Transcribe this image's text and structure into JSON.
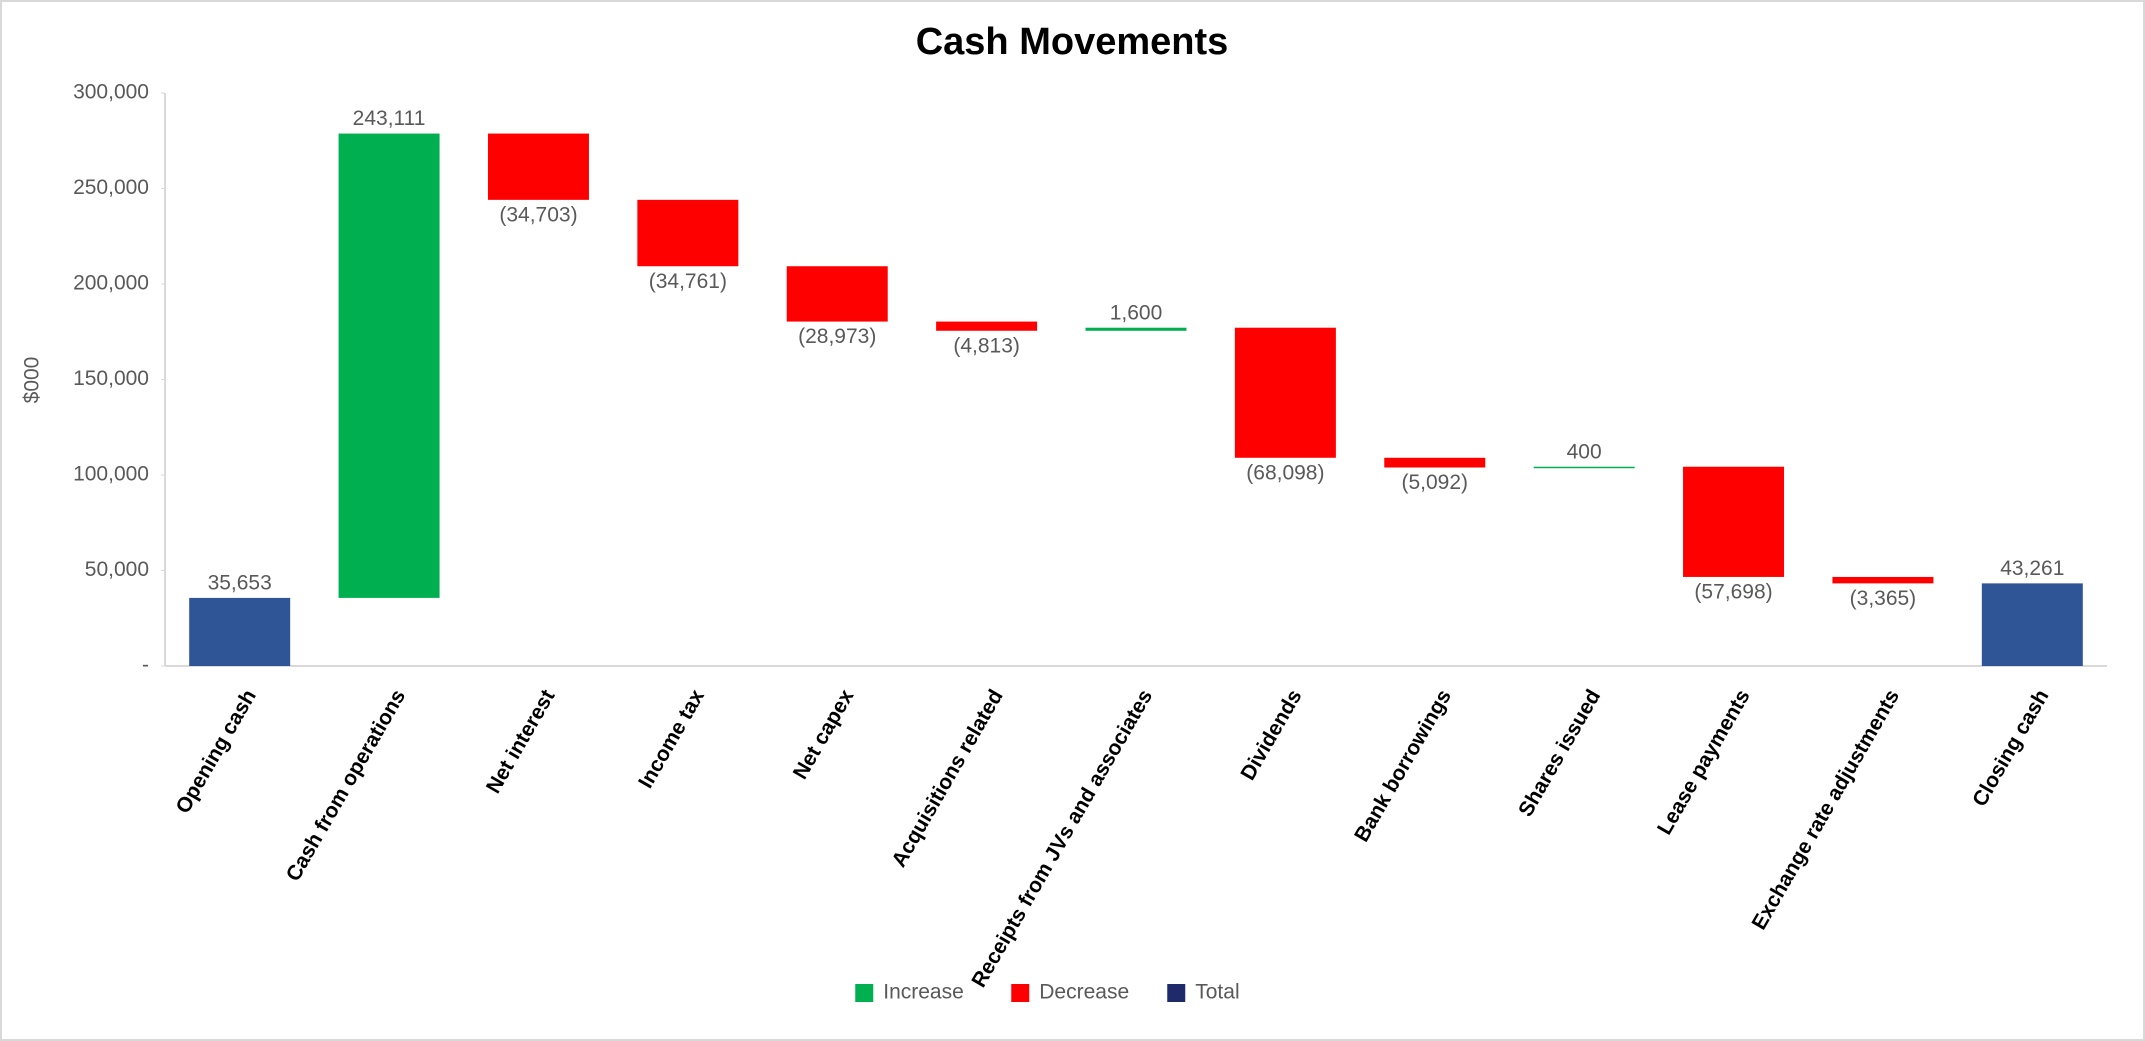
{
  "chart_data": {
    "type": "waterfall",
    "title": "Cash Movements",
    "y_label": "$000",
    "categories": [
      "Opening cash",
      "Cash from operations",
      "Net interest",
      "Income tax",
      "Net capex",
      "Acquisitions related",
      "Receipts from JVs and associates",
      "Dividends",
      "Bank borrowings",
      "Shares issued",
      "Lease payments",
      "Exchange rate adjustments",
      "Closing cash"
    ],
    "values": [
      35653,
      243111,
      -34703,
      -34761,
      -28973,
      -4813,
      1600,
      -68098,
      -5092,
      400,
      -57698,
      -3365,
      43261
    ],
    "value_labels": [
      "35,653",
      "243,111",
      "(34,703)",
      "(34,761)",
      "(28,973)",
      "(4,813)",
      "1,600",
      "(68,098)",
      "(5,092)",
      "400",
      "(57,698)",
      "(3,365)",
      "43,261"
    ],
    "kinds": [
      "Total",
      "Increase",
      "Decrease",
      "Decrease",
      "Decrease",
      "Decrease",
      "Increase",
      "Decrease",
      "Decrease",
      "Increase",
      "Decrease",
      "Decrease",
      "Total"
    ],
    "legend": [
      {
        "name": "Increase",
        "color": "#00b050"
      },
      {
        "name": "Decrease",
        "color": "#ff0000"
      },
      {
        "name": "Total",
        "color": "#2f5597"
      }
    ],
    "ylim": [
      0,
      300000
    ],
    "yticks": [
      {
        "value": 0,
        "label": "-"
      },
      {
        "value": 50000,
        "label": "50,000"
      },
      {
        "value": 100000,
        "label": "100,000"
      },
      {
        "value": 150000,
        "label": "150,000"
      },
      {
        "value": 200000,
        "label": "200,000"
      },
      {
        "value": 250000,
        "label": "250,000"
      },
      {
        "value": 300000,
        "label": "300,000"
      }
    ],
    "grid": false,
    "legend_position": "bottom"
  }
}
